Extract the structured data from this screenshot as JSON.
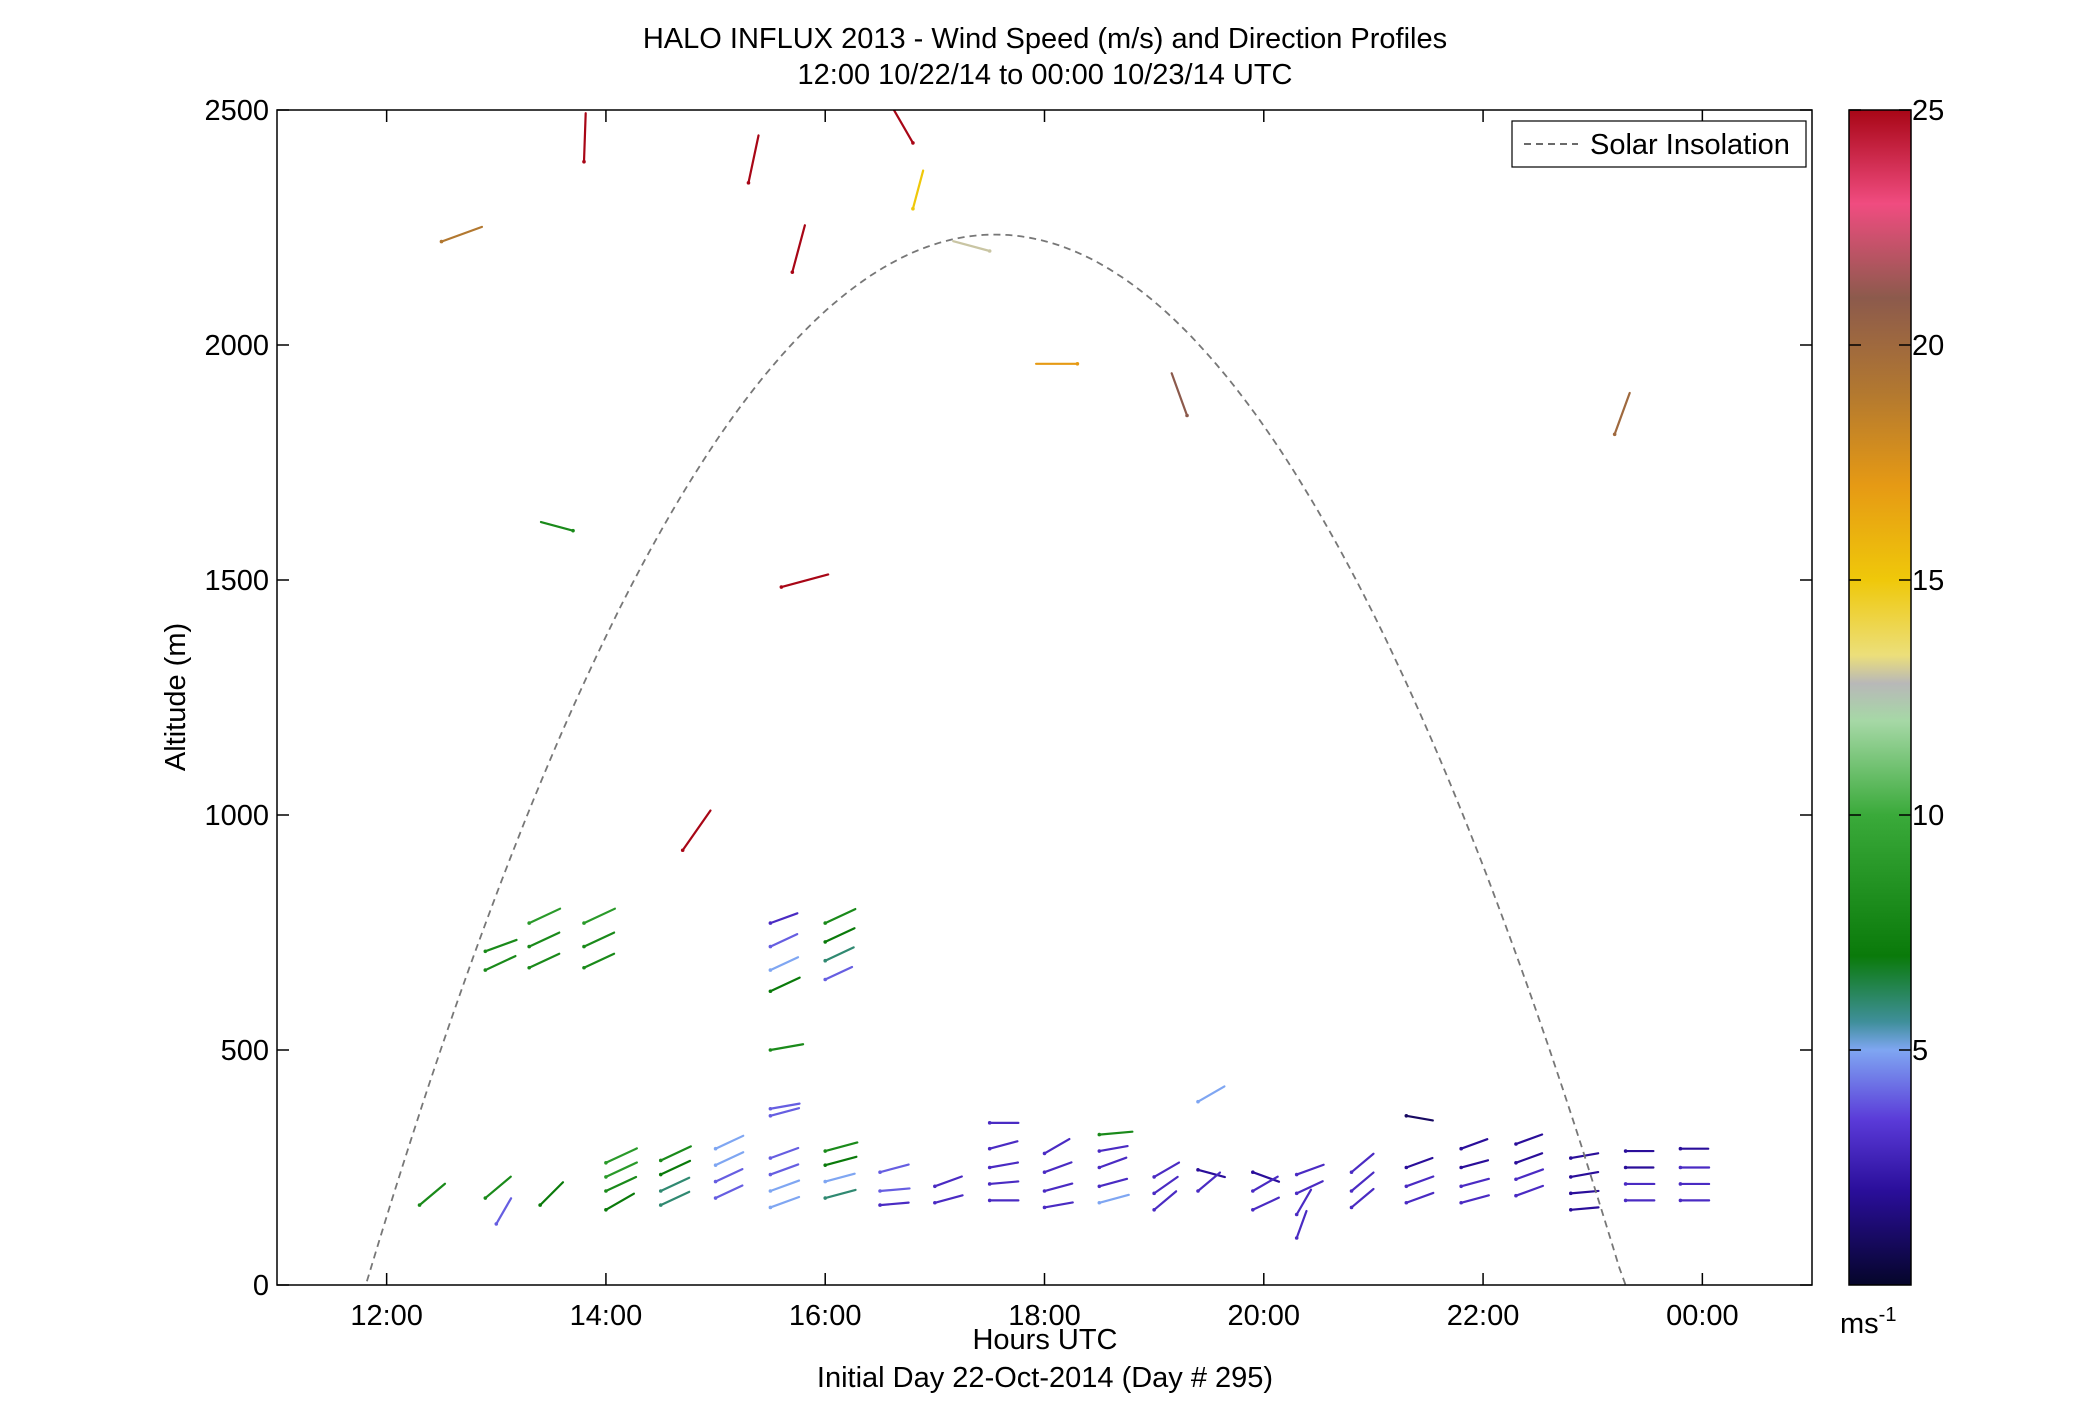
{
  "chart_data": {
    "type": "scatter",
    "subtype": "wind-barb-profile",
    "title": "HALO INFLUX 2013 - Wind Speed (m/s) and Direction Profiles",
    "subtitle": "12:00 10/22/14 to 00:00 10/23/14  UTC",
    "xlabel": "Hours UTC",
    "xlabel2": "Initial Day 22-Oct-2014 (Day # 295)",
    "ylabel": "Altitude (m)",
    "xlim": [
      11.0,
      25.0
    ],
    "ylim": [
      0,
      2500
    ],
    "x_ticks": [
      12,
      14,
      16,
      18,
      20,
      22,
      24
    ],
    "x_tick_labels": [
      "12:00",
      "14:00",
      "16:00",
      "18:00",
      "20:00",
      "22:00",
      "00:00"
    ],
    "y_ticks": [
      0,
      500,
      1000,
      1500,
      2000,
      2500
    ],
    "y_tick_labels": [
      "0",
      "500",
      "1000",
      "1500",
      "2000",
      "2500"
    ],
    "grid": false,
    "legend": {
      "position": "top-right",
      "entries": [
        "Solar Insolation"
      ]
    },
    "colorbar": {
      "min": 0,
      "max": 25,
      "ticks": [
        5,
        10,
        15,
        20,
        25
      ],
      "tick_labels": [
        "5",
        "10",
        "15",
        "20",
        "25"
      ],
      "unit_label": "ms",
      "unit_exponent": "-1",
      "stops": [
        [
          0,
          "#05052a"
        ],
        [
          2,
          "#2a0e9a"
        ],
        [
          3.5,
          "#5a3ad8"
        ],
        [
          5,
          "#7fa6f2"
        ],
        [
          5.6,
          "#3f8f9a"
        ],
        [
          7,
          "#0a7a0a"
        ],
        [
          10,
          "#3aaa3a"
        ],
        [
          12,
          "#a6d8a6"
        ],
        [
          12.8,
          "#b8b8b8"
        ],
        [
          13.4,
          "#ecdf7a"
        ],
        [
          15,
          "#efc80a"
        ],
        [
          17,
          "#e69a14"
        ],
        [
          19,
          "#b27830"
        ],
        [
          21,
          "#8c5a4c"
        ],
        [
          23,
          "#f04c80"
        ],
        [
          25,
          "#a80616"
        ]
      ]
    },
    "solar_insolation": {
      "rise": 11.82,
      "peak": 17.55,
      "set": 23.3,
      "peak_altitude": 2235
    },
    "series": [
      {
        "name": "Solar Insolation",
        "style": "dashed",
        "color": "#777777"
      }
    ],
    "barbs": [
      [
        12.5,
        2220,
        20,
        19
      ],
      [
        13.8,
        2390,
        88,
        25
      ],
      [
        15.3,
        2345,
        78,
        25
      ],
      [
        16.8,
        2430,
        120,
        25
      ],
      [
        16.8,
        2290,
        75,
        15
      ],
      [
        17.5,
        2200,
        165,
        13
      ],
      [
        15.7,
        2155,
        75,
        25
      ],
      [
        18.3,
        1960,
        180,
        17
      ],
      [
        19.3,
        1850,
        110,
        21
      ],
      [
        23.2,
        1810,
        70,
        20
      ],
      [
        13.7,
        1605,
        165,
        8
      ],
      [
        15.6,
        1485,
        15,
        25
      ],
      [
        14.7,
        925,
        55,
        25
      ],
      [
        12.9,
        710,
        20,
        8
      ],
      [
        12.9,
        670,
        25,
        8
      ],
      [
        13.3,
        770,
        25,
        9
      ],
      [
        13.3,
        720,
        25,
        8
      ],
      [
        13.3,
        675,
        25,
        8
      ],
      [
        13.8,
        770,
        25,
        9
      ],
      [
        13.8,
        720,
        25,
        8
      ],
      [
        13.8,
        675,
        25,
        8
      ],
      [
        15.5,
        770,
        20,
        3
      ],
      [
        15.5,
        720,
        25,
        4
      ],
      [
        15.5,
        670,
        25,
        5
      ],
      [
        15.5,
        625,
        25,
        7
      ],
      [
        16.0,
        770,
        25,
        8
      ],
      [
        16.0,
        730,
        25,
        7
      ],
      [
        16.0,
        690,
        25,
        6
      ],
      [
        16.0,
        650,
        25,
        4
      ],
      [
        15.5,
        500,
        10,
        8
      ],
      [
        15.5,
        375,
        10,
        4
      ],
      [
        15.5,
        360,
        15,
        4
      ],
      [
        12.3,
        170,
        40,
        8
      ],
      [
        12.9,
        185,
        40,
        8
      ],
      [
        13.0,
        130,
        60,
        4
      ],
      [
        13.4,
        170,
        45,
        7
      ],
      [
        14.0,
        260,
        25,
        9
      ],
      [
        14.0,
        230,
        25,
        9
      ],
      [
        14.0,
        200,
        25,
        8
      ],
      [
        14.0,
        160,
        30,
        7
      ],
      [
        14.5,
        265,
        25,
        8
      ],
      [
        14.5,
        235,
        25,
        7
      ],
      [
        14.5,
        200,
        25,
        6
      ],
      [
        14.5,
        170,
        25,
        6
      ],
      [
        15.0,
        290,
        25,
        5
      ],
      [
        15.0,
        255,
        25,
        5
      ],
      [
        15.0,
        220,
        25,
        4
      ],
      [
        15.0,
        185,
        25,
        4
      ],
      [
        15.5,
        270,
        20,
        4
      ],
      [
        15.5,
        235,
        20,
        4
      ],
      [
        15.5,
        200,
        20,
        5
      ],
      [
        15.5,
        165,
        20,
        5
      ],
      [
        16.0,
        285,
        15,
        8
      ],
      [
        16.0,
        255,
        15,
        7
      ],
      [
        16.0,
        220,
        15,
        5
      ],
      [
        16.0,
        185,
        15,
        6
      ],
      [
        16.5,
        240,
        15,
        4
      ],
      [
        16.5,
        200,
        5,
        4
      ],
      [
        16.5,
        170,
        5,
        3
      ],
      [
        17.0,
        210,
        20,
        3
      ],
      [
        17.0,
        175,
        15,
        3
      ],
      [
        17.5,
        345,
        0,
        3
      ],
      [
        17.5,
        290,
        15,
        3
      ],
      [
        17.5,
        250,
        10,
        3
      ],
      [
        17.5,
        215,
        5,
        3
      ],
      [
        17.5,
        180,
        0,
        3
      ],
      [
        18.0,
        280,
        30,
        3
      ],
      [
        18.0,
        240,
        20,
        3
      ],
      [
        18.0,
        200,
        15,
        3
      ],
      [
        18.0,
        165,
        10,
        3
      ],
      [
        18.5,
        320,
        5,
        8
      ],
      [
        18.5,
        285,
        10,
        3
      ],
      [
        18.5,
        250,
        20,
        3
      ],
      [
        18.5,
        210,
        15,
        3
      ],
      [
        18.5,
        175,
        15,
        5
      ],
      [
        19.0,
        230,
        30,
        3
      ],
      [
        19.0,
        195,
        35,
        3
      ],
      [
        19.0,
        160,
        40,
        3
      ],
      [
        19.4,
        390,
        30,
        5
      ],
      [
        19.4,
        245,
        345,
        2
      ],
      [
        19.4,
        200,
        40,
        3
      ],
      [
        19.9,
        240,
        340,
        2
      ],
      [
        19.9,
        200,
        30,
        3
      ],
      [
        19.9,
        160,
        25,
        3
      ],
      [
        20.3,
        235,
        20,
        3
      ],
      [
        20.3,
        195,
        25,
        3
      ],
      [
        20.3,
        150,
        60,
        3
      ],
      [
        20.3,
        100,
        70,
        3
      ],
      [
        20.8,
        240,
        40,
        3
      ],
      [
        20.8,
        200,
        40,
        3
      ],
      [
        20.8,
        165,
        40,
        3
      ],
      [
        21.3,
        360,
        350,
        1
      ],
      [
        21.3,
        250,
        20,
        2
      ],
      [
        21.3,
        210,
        20,
        3
      ],
      [
        21.3,
        175,
        20,
        3
      ],
      [
        21.8,
        290,
        20,
        2
      ],
      [
        21.8,
        250,
        15,
        2
      ],
      [
        21.8,
        210,
        15,
        3
      ],
      [
        21.8,
        175,
        15,
        3
      ],
      [
        22.3,
        300,
        20,
        2
      ],
      [
        22.3,
        260,
        20,
        2
      ],
      [
        22.3,
        225,
        20,
        3
      ],
      [
        22.3,
        190,
        20,
        3
      ],
      [
        22.8,
        270,
        10,
        2
      ],
      [
        22.8,
        230,
        10,
        2
      ],
      [
        22.8,
        195,
        5,
        2
      ],
      [
        22.8,
        160,
        5,
        2
      ],
      [
        23.3,
        285,
        0,
        2
      ],
      [
        23.3,
        250,
        0,
        2
      ],
      [
        23.3,
        215,
        0,
        3
      ],
      [
        23.3,
        180,
        0,
        3
      ],
      [
        23.8,
        290,
        0,
        2
      ],
      [
        23.8,
        250,
        0,
        3
      ],
      [
        23.8,
        215,
        0,
        3
      ],
      [
        23.8,
        180,
        0,
        3
      ]
    ]
  }
}
